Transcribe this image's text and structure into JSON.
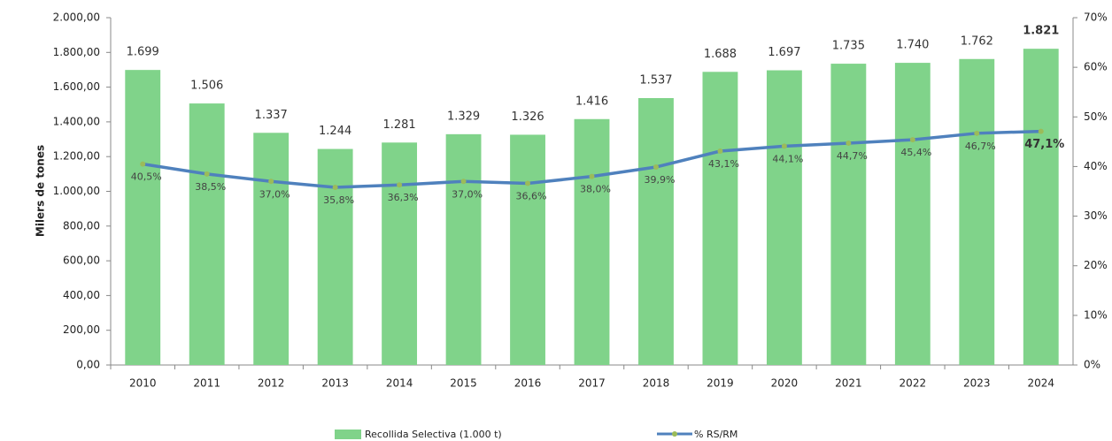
{
  "chart_data": {
    "type": "bar",
    "y_label": "Milers de tones",
    "categories": [
      "2010",
      "2011",
      "2012",
      "2013",
      "2014",
      "2015",
      "2016",
      "2017",
      "2018",
      "2019",
      "2020",
      "2021",
      "2022",
      "2023",
      "2024"
    ],
    "series": [
      {
        "name": "Recollida Selectiva  (1.000 t)",
        "type": "bar",
        "color": "#80d38a",
        "values": [
          1699,
          1506,
          1337,
          1244,
          1281,
          1329,
          1326,
          1416,
          1537,
          1688,
          1697,
          1735,
          1740,
          1762,
          1821
        ],
        "value_labels": [
          "1.699",
          "1.506",
          "1.337",
          "1.244",
          "1.281",
          "1.329",
          "1.326",
          "1.416",
          "1.537",
          "1.688",
          "1.697",
          "1.735",
          "1.740",
          "1.762",
          "1.821"
        ]
      },
      {
        "name": "% RS/RM",
        "type": "line",
        "axis": "y2",
        "color": "#4f81bd",
        "marker_color": "#9bbb59",
        "values": [
          40.5,
          38.5,
          37.0,
          35.8,
          36.3,
          37.0,
          36.6,
          38.0,
          39.9,
          43.1,
          44.1,
          44.7,
          45.4,
          46.7,
          47.1
        ],
        "value_labels": [
          "40,5%",
          "38,5%",
          "37,0%",
          "35,8%",
          "36,3%",
          "37,0%",
          "36,6%",
          "38,0%",
          "39,9%",
          "43,1%",
          "44,1%",
          "44,7%",
          "45,4%",
          "46,7%",
          "47,1%"
        ]
      }
    ],
    "ylim": [
      0,
      2000
    ],
    "yticks": [
      {
        "value": 0,
        "label": "0,00"
      },
      {
        "value": 200,
        "label": "200,00"
      },
      {
        "value": 400,
        "label": "400,00"
      },
      {
        "value": 600,
        "label": "600,00"
      },
      {
        "value": 800,
        "label": "800,00"
      },
      {
        "value": 1000,
        "label": "1.000,00"
      },
      {
        "value": 1200,
        "label": "1.200,00"
      },
      {
        "value": 1400,
        "label": "1.400,00"
      },
      {
        "value": 1600,
        "label": "1.600,00"
      },
      {
        "value": 1800,
        "label": "1.800,00"
      },
      {
        "value": 2000,
        "label": "2.000,00"
      }
    ],
    "y2lim": [
      0,
      70
    ],
    "y2ticks": [
      {
        "value": 0,
        "label": "0%"
      },
      {
        "value": 10,
        "label": "10%"
      },
      {
        "value": 20,
        "label": "20%"
      },
      {
        "value": 30,
        "label": "30%"
      },
      {
        "value": 40,
        "label": "40%"
      },
      {
        "value": 50,
        "label": "50%"
      },
      {
        "value": 60,
        "label": "60%"
      },
      {
        "value": 70,
        "label": "70%"
      }
    ]
  }
}
